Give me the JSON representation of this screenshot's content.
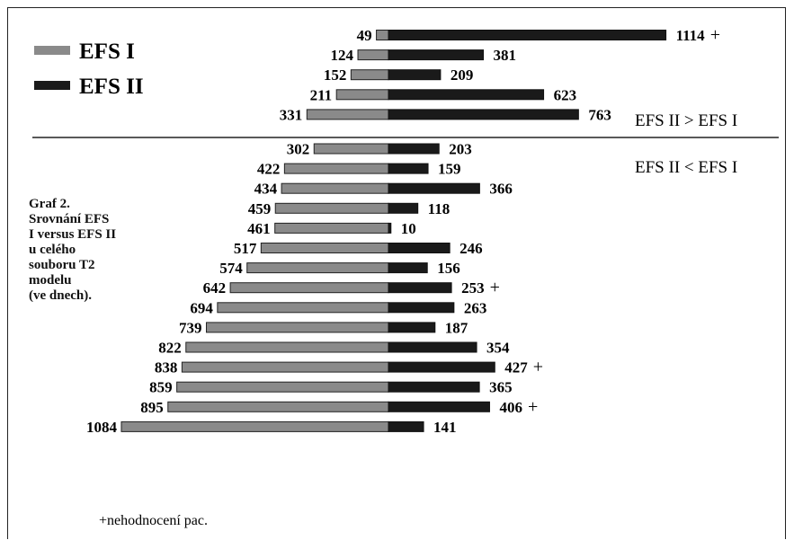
{
  "chart_data": {
    "type": "bar",
    "orientation": "diverging-horizontal",
    "series": [
      {
        "name": "EFS I",
        "color": "#8a8a8a",
        "values": [
          49,
          124,
          152,
          211,
          331,
          302,
          422,
          434,
          459,
          461,
          517,
          574,
          642,
          694,
          739,
          822,
          838,
          859,
          895,
          1084
        ]
      },
      {
        "name": "EFS II",
        "color": "#1a1a1a",
        "values": [
          1114,
          381,
          209,
          623,
          763,
          203,
          159,
          366,
          118,
          10,
          246,
          156,
          253,
          263,
          187,
          354,
          427,
          365,
          406,
          141
        ]
      }
    ],
    "not_evaluated_marker": [
      true,
      false,
      false,
      false,
      false,
      false,
      false,
      false,
      false,
      false,
      false,
      false,
      true,
      false,
      false,
      false,
      true,
      false,
      true,
      false
    ],
    "marker_symbol": "+",
    "divider_after_index": 4,
    "region_labels": {
      "above": "EFS II > EFS I",
      "below": "EFS II < EFS I"
    },
    "legend_position": "top-left",
    "grid": false
  },
  "caption": [
    "Graf 2.",
    "Srovnání EFS",
    "I versus EFS II",
    "u celého",
    "souboru T2",
    "modelu",
    "(ve dnech)."
  ],
  "footnote": "+nehodnocení pac."
}
